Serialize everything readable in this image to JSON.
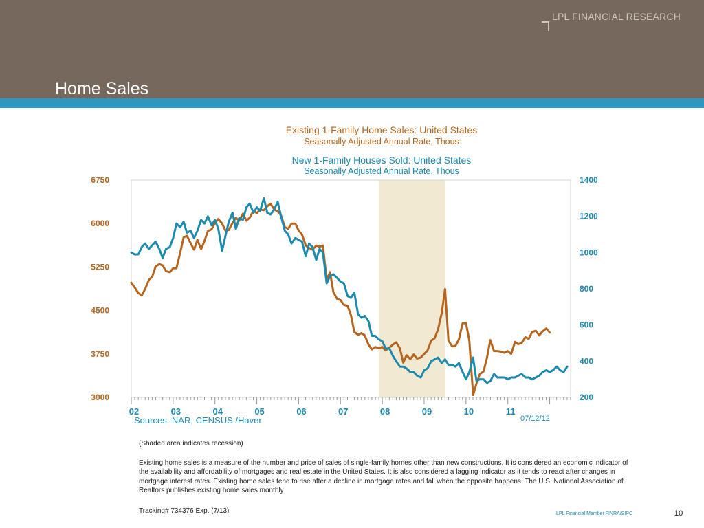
{
  "header": {
    "brand": "LPL FINANCIAL RESEARCH",
    "title": "Home Sales"
  },
  "chart_data": {
    "type": "line",
    "titles": [
      {
        "title": "Existing 1-Family Home Sales: United States",
        "subtitle": "Seasonally Adjusted Annual Rate, Thous",
        "color": "#b5651d"
      },
      {
        "title": "New 1-Family Houses Sold: United States",
        "subtitle": "Seasonally Adjusted Annual Rate, Thous",
        "color": "#1d8ab0"
      }
    ],
    "x_axis": {
      "range": [
        2002.0,
        2012.5
      ],
      "tick_labels": [
        "02",
        "03",
        "04",
        "05",
        "06",
        "07",
        "08",
        "09",
        "10",
        "11"
      ],
      "tick_positions": [
        2002,
        2003,
        2004,
        2005,
        2006,
        2007,
        2008,
        2009,
        2010,
        2011
      ]
    },
    "y_left": {
      "range": [
        3000,
        6750
      ],
      "ticks": [
        3000,
        3750,
        4500,
        5250,
        6000,
        6750
      ],
      "color": "#b5651d"
    },
    "y_right": {
      "range": [
        200,
        1400
      ],
      "ticks": [
        200,
        400,
        600,
        800,
        1000,
        1200,
        1400
      ],
      "color": "#1d8ab0"
    },
    "recession": {
      "start": 2007.92,
      "end": 2009.5,
      "note": "(Shaded area indicates recession)"
    },
    "series": [
      {
        "name": "Existing 1-Family Home Sales: United States",
        "axis": "left",
        "color": "#b5651d",
        "points": [
          [
            2002.0,
            4980
          ],
          [
            2002.08,
            4900
          ],
          [
            2002.17,
            4800
          ],
          [
            2002.25,
            4760
          ],
          [
            2002.33,
            4870
          ],
          [
            2002.42,
            5030
          ],
          [
            2002.5,
            5080
          ],
          [
            2002.58,
            5260
          ],
          [
            2002.67,
            5300
          ],
          [
            2002.75,
            5280
          ],
          [
            2002.83,
            5180
          ],
          [
            2002.92,
            5160
          ],
          [
            2003.0,
            5230
          ],
          [
            2003.08,
            5230
          ],
          [
            2003.17,
            5500
          ],
          [
            2003.25,
            5760
          ],
          [
            2003.33,
            5790
          ],
          [
            2003.42,
            5660
          ],
          [
            2003.5,
            5550
          ],
          [
            2003.58,
            5720
          ],
          [
            2003.67,
            5560
          ],
          [
            2003.75,
            5700
          ],
          [
            2003.83,
            5870
          ],
          [
            2003.92,
            5900
          ],
          [
            2004.0,
            6010
          ],
          [
            2004.08,
            6080
          ],
          [
            2004.17,
            6000
          ],
          [
            2004.25,
            5880
          ],
          [
            2004.33,
            5890
          ],
          [
            2004.42,
            6010
          ],
          [
            2004.5,
            6100
          ],
          [
            2004.58,
            6050
          ],
          [
            2004.67,
            6170
          ],
          [
            2004.75,
            6050
          ],
          [
            2004.83,
            6100
          ],
          [
            2004.92,
            6220
          ],
          [
            2005.0,
            6180
          ],
          [
            2005.08,
            6240
          ],
          [
            2005.17,
            6230
          ],
          [
            2005.25,
            6300
          ],
          [
            2005.33,
            6340
          ],
          [
            2005.42,
            6240
          ],
          [
            2005.5,
            6210
          ],
          [
            2005.58,
            6140
          ],
          [
            2005.67,
            5940
          ],
          [
            2005.75,
            5910
          ],
          [
            2005.83,
            6000
          ],
          [
            2005.92,
            6000
          ],
          [
            2006.0,
            5880
          ],
          [
            2006.08,
            5810
          ],
          [
            2006.17,
            5620
          ],
          [
            2006.25,
            5580
          ],
          [
            2006.33,
            5550
          ],
          [
            2006.42,
            5620
          ],
          [
            2006.5,
            5600
          ],
          [
            2006.58,
            5620
          ],
          [
            2006.67,
            5040
          ],
          [
            2006.75,
            5160
          ],
          [
            2006.83,
            4820
          ],
          [
            2006.92,
            4700
          ],
          [
            2007.0,
            4680
          ],
          [
            2007.08,
            4600
          ],
          [
            2007.17,
            4580
          ],
          [
            2007.25,
            4420
          ],
          [
            2007.33,
            4130
          ],
          [
            2007.42,
            4080
          ],
          [
            2007.5,
            4110
          ],
          [
            2007.58,
            4070
          ],
          [
            2007.67,
            3910
          ],
          [
            2007.75,
            3830
          ],
          [
            2007.83,
            3870
          ],
          [
            2007.92,
            3850
          ],
          [
            2008.0,
            3870
          ],
          [
            2008.08,
            3810
          ],
          [
            2008.17,
            3860
          ],
          [
            2008.25,
            3910
          ],
          [
            2008.33,
            3950
          ],
          [
            2008.42,
            3850
          ],
          [
            2008.5,
            3600
          ],
          [
            2008.58,
            3730
          ],
          [
            2008.67,
            3660
          ],
          [
            2008.75,
            3740
          ],
          [
            2008.83,
            3670
          ],
          [
            2008.92,
            3690
          ],
          [
            2009.0,
            3750
          ],
          [
            2009.08,
            3810
          ],
          [
            2009.17,
            3980
          ],
          [
            2009.25,
            4020
          ],
          [
            2009.33,
            4170
          ],
          [
            2009.42,
            4460
          ],
          [
            2009.5,
            4870
          ],
          [
            2009.58,
            3980
          ],
          [
            2009.67,
            3880
          ],
          [
            2009.75,
            3890
          ],
          [
            2009.83,
            4000
          ],
          [
            2009.92,
            4280
          ],
          [
            2010.0,
            4280
          ],
          [
            2010.08,
            3980
          ],
          [
            2010.17,
            3040
          ],
          [
            2010.25,
            3240
          ],
          [
            2010.33,
            3400
          ],
          [
            2010.42,
            3450
          ],
          [
            2010.5,
            3680
          ],
          [
            2010.58,
            3990
          ],
          [
            2010.67,
            3800
          ],
          [
            2010.75,
            3800
          ],
          [
            2010.83,
            3790
          ],
          [
            2010.92,
            3770
          ],
          [
            2011.0,
            3800
          ],
          [
            2011.08,
            3750
          ],
          [
            2011.17,
            3960
          ],
          [
            2011.25,
            3920
          ],
          [
            2011.33,
            3940
          ],
          [
            2011.42,
            4040
          ],
          [
            2011.5,
            4010
          ],
          [
            2011.58,
            4130
          ],
          [
            2011.67,
            4150
          ],
          [
            2011.75,
            4070
          ],
          [
            2011.83,
            4140
          ],
          [
            2011.92,
            4190
          ],
          [
            2012.0,
            4120
          ]
        ]
      },
      {
        "name": "New 1-Family Houses Sold: United States",
        "axis": "right",
        "color": "#1d8ab0",
        "points": [
          [
            2002.0,
            1000
          ],
          [
            2002.08,
            990
          ],
          [
            2002.17,
            990
          ],
          [
            2002.25,
            1030
          ],
          [
            2002.33,
            1050
          ],
          [
            2002.42,
            1020
          ],
          [
            2002.5,
            1040
          ],
          [
            2002.58,
            1060
          ],
          [
            2002.67,
            1020
          ],
          [
            2002.75,
            970
          ],
          [
            2002.83,
            1020
          ],
          [
            2002.92,
            1030
          ],
          [
            2003.0,
            1080
          ],
          [
            2003.08,
            1160
          ],
          [
            2003.17,
            1140
          ],
          [
            2003.25,
            1170
          ],
          [
            2003.33,
            1110
          ],
          [
            2003.42,
            1120
          ],
          [
            2003.5,
            1080
          ],
          [
            2003.58,
            1120
          ],
          [
            2003.67,
            1180
          ],
          [
            2003.75,
            1160
          ],
          [
            2003.83,
            1200
          ],
          [
            2003.92,
            1150
          ],
          [
            2004.0,
            1180
          ],
          [
            2004.08,
            1130
          ],
          [
            2004.17,
            1010
          ],
          [
            2004.25,
            1090
          ],
          [
            2004.33,
            1170
          ],
          [
            2004.42,
            1220
          ],
          [
            2004.5,
            1130
          ],
          [
            2004.58,
            1190
          ],
          [
            2004.67,
            1180
          ],
          [
            2004.75,
            1250
          ],
          [
            2004.83,
            1270
          ],
          [
            2004.92,
            1220
          ],
          [
            2005.0,
            1250
          ],
          [
            2005.08,
            1230
          ],
          [
            2005.17,
            1300
          ],
          [
            2005.25,
            1220
          ],
          [
            2005.33,
            1210
          ],
          [
            2005.42,
            1240
          ],
          [
            2005.5,
            1280
          ],
          [
            2005.58,
            1200
          ],
          [
            2005.67,
            1120
          ],
          [
            2005.75,
            1100
          ],
          [
            2005.83,
            1050
          ],
          [
            2005.92,
            1080
          ],
          [
            2006.0,
            1070
          ],
          [
            2006.08,
            1060
          ],
          [
            2006.17,
            980
          ],
          [
            2006.25,
            1050
          ],
          [
            2006.33,
            1030
          ],
          [
            2006.42,
            960
          ],
          [
            2006.5,
            1020
          ],
          [
            2006.58,
            1000
          ],
          [
            2006.67,
            830
          ],
          [
            2006.75,
            870
          ],
          [
            2006.83,
            880
          ],
          [
            2006.92,
            860
          ],
          [
            2007.0,
            840
          ],
          [
            2007.08,
            830
          ],
          [
            2007.17,
            760
          ],
          [
            2007.25,
            750
          ],
          [
            2007.33,
            780
          ],
          [
            2007.42,
            660
          ],
          [
            2007.5,
            640
          ],
          [
            2007.58,
            650
          ],
          [
            2007.67,
            620
          ],
          [
            2007.75,
            540
          ],
          [
            2007.83,
            540
          ],
          [
            2007.92,
            520
          ],
          [
            2008.0,
            510
          ],
          [
            2008.08,
            470
          ],
          [
            2008.17,
            470
          ],
          [
            2008.25,
            430
          ],
          [
            2008.33,
            400
          ],
          [
            2008.42,
            370
          ],
          [
            2008.5,
            370
          ],
          [
            2008.58,
            360
          ],
          [
            2008.67,
            340
          ],
          [
            2008.75,
            340
          ],
          [
            2008.83,
            320
          ],
          [
            2008.92,
            310
          ],
          [
            2009.0,
            350
          ],
          [
            2009.08,
            360
          ],
          [
            2009.17,
            400
          ],
          [
            2009.25,
            410
          ],
          [
            2009.33,
            420
          ],
          [
            2009.42,
            390
          ],
          [
            2009.5,
            410
          ],
          [
            2009.58,
            380
          ],
          [
            2009.67,
            380
          ],
          [
            2009.75,
            370
          ],
          [
            2009.83,
            390
          ],
          [
            2009.92,
            340
          ],
          [
            2010.0,
            300
          ],
          [
            2010.08,
            340
          ],
          [
            2010.17,
            420
          ],
          [
            2010.25,
            290
          ],
          [
            2010.33,
            300
          ],
          [
            2010.42,
            300
          ],
          [
            2010.5,
            280
          ],
          [
            2010.58,
            290
          ],
          [
            2010.67,
            330
          ],
          [
            2010.75,
            310
          ],
          [
            2010.83,
            310
          ],
          [
            2010.92,
            310
          ],
          [
            2011.0,
            300
          ],
          [
            2011.08,
            310
          ],
          [
            2011.17,
            310
          ],
          [
            2011.25,
            320
          ],
          [
            2011.33,
            330
          ],
          [
            2011.42,
            310
          ],
          [
            2011.5,
            310
          ],
          [
            2011.58,
            300
          ],
          [
            2011.67,
            310
          ],
          [
            2011.75,
            320
          ],
          [
            2011.83,
            340
          ],
          [
            2011.92,
            350
          ],
          [
            2012.0,
            340
          ],
          [
            2012.08,
            350
          ],
          [
            2012.17,
            370
          ],
          [
            2012.25,
            350
          ],
          [
            2012.33,
            340
          ],
          [
            2012.42,
            370
          ]
        ]
      }
    ]
  },
  "sources": "Sources:  NAR, CENSUS /Haver",
  "chart_date": "07/12/12",
  "description": "Existing home sales is a measure of the number and price of sales of single-family homes other than new constructions. It is considered an economic indicator of the availability and affordability of mortgages and real estate in the United States. It is also considered a lagging indicator as it tends to react after changes in mortgage interest rates. Existing home sales tend to rise after a decline in mortgage rates and fall when the opposite happens. The U.S. National Association of Realtors publishes existing home sales monthly.",
  "tracking": "Tracking# 734376 Exp. (7/13)",
  "footer": {
    "member": "LPL Financial Member FINRA/SIPC",
    "page": "10"
  }
}
